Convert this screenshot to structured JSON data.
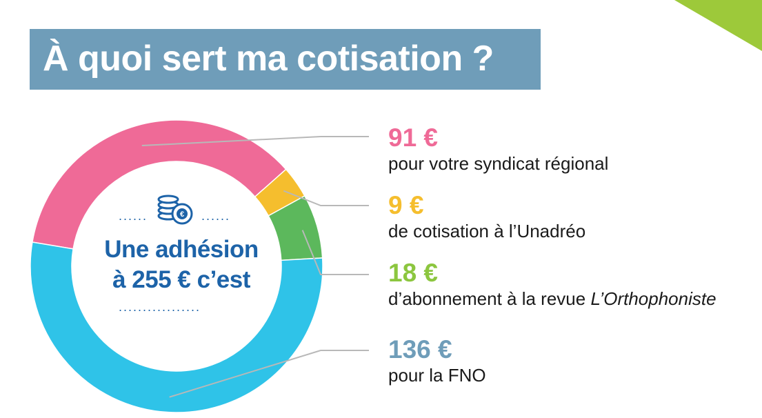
{
  "title": "À quoi sert ma cotisation ?",
  "center": {
    "line1": "Une adhésion",
    "line2": "à 255 € c’est"
  },
  "icon": "coins-euro-icon",
  "colors": {
    "title_bg": "#6f9db9",
    "corner": "#9dc93a",
    "center_text": "#1d63a8"
  },
  "chart_data": {
    "type": "pie",
    "total": 255,
    "unit": "€",
    "slices": [
      {
        "value": 91,
        "value_label": "91 €",
        "desc": "pour votre syndicat régional",
        "color": "#ef6a97"
      },
      {
        "value": 9,
        "value_label": "9 €",
        "desc": "de cotisation à l’Unadréo",
        "color": "#f5be2e"
      },
      {
        "value": 18,
        "value_label": "18 €",
        "desc": "d’abonnement à la revue ",
        "desc_italic": "L’Orthophoniste",
        "color": "#5cb85c",
        "label_color": "#8cc63f"
      },
      {
        "value": 136,
        "value_label": "136 €",
        "desc": "pour la FNO",
        "color": "#2fc3e8",
        "label_color": "#6f9db9"
      }
    ]
  }
}
